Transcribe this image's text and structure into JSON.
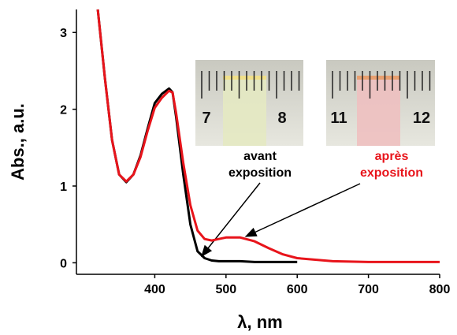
{
  "chart_data": {
    "type": "line",
    "x_label": "λ, nm",
    "y_label": "Abs., a.u.",
    "x": [
      320,
      330,
      340,
      350,
      360,
      370,
      380,
      390,
      400,
      410,
      420,
      425,
      430,
      440,
      450,
      460,
      470,
      480,
      490,
      500,
      520,
      540,
      560,
      580,
      600,
      650,
      700,
      750,
      800
    ],
    "series": [
      {
        "color": "#000000",
        "values": [
          3.3,
          2.4,
          1.6,
          1.15,
          1.05,
          1.15,
          1.4,
          1.75,
          2.08,
          2.2,
          2.27,
          2.22,
          1.9,
          1.15,
          0.5,
          0.15,
          0.06,
          0.03,
          0.02,
          0.02,
          0.02,
          0.01,
          0.01,
          0.01,
          0.01,
          null,
          null,
          null,
          null
        ]
      },
      {
        "color": "#e8141b",
        "values": [
          3.3,
          2.4,
          1.6,
          1.15,
          1.06,
          1.15,
          1.38,
          1.72,
          2.02,
          2.15,
          2.24,
          2.22,
          1.95,
          1.3,
          0.75,
          0.42,
          0.31,
          0.29,
          0.31,
          0.33,
          0.33,
          0.28,
          0.19,
          0.11,
          0.06,
          0.02,
          0.01,
          0.01,
          0.01
        ]
      }
    ],
    "xlim": [
      290,
      800
    ],
    "xticks": [
      400,
      500,
      600,
      700,
      800
    ],
    "ylim": [
      -0.15,
      3.3
    ],
    "yticks": [
      0,
      1,
      2,
      3
    ],
    "insets": [
      {
        "ruler_labels": [
          "7",
          "8"
        ]
      },
      {
        "ruler_labels": [
          "11",
          "12"
        ]
      }
    ],
    "annotations": [
      {
        "lines": [
          "avant",
          "exposition"
        ],
        "color": "#000000"
      },
      {
        "lines": [
          "après",
          "exposition"
        ],
        "color": "#e8141b"
      }
    ]
  }
}
